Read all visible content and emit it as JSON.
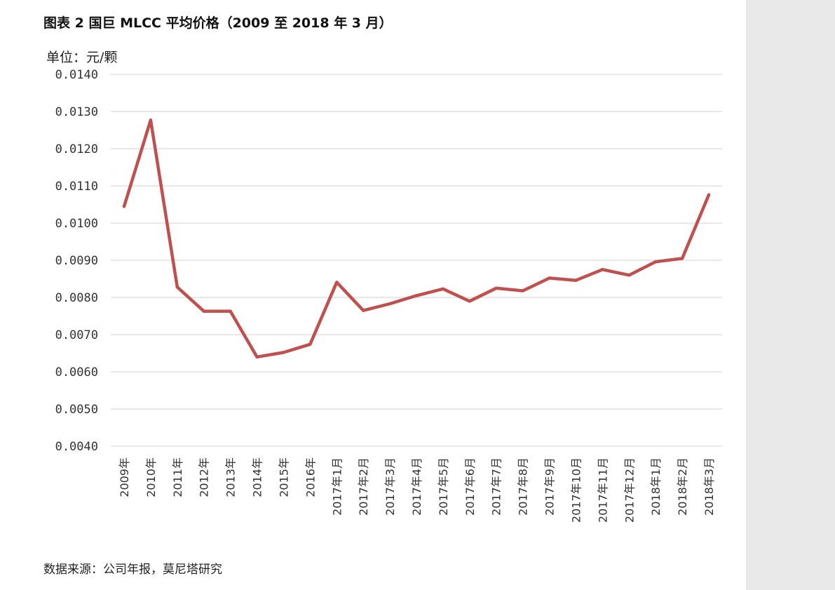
{
  "title": "图表 2 国巨 MLCC 平均价格（2009 至 2018 年 3 月）",
  "unit_label": "单位：元/颗",
  "source_note": "数据来源：公司年报，莫尼塔研究",
  "colors": {
    "line": "#c0504d",
    "grid": "#d9d9d9",
    "panel": "#e9e9e9"
  },
  "chart_data": {
    "type": "line",
    "title": "图表 2 国巨 MLCC 平均价格（2009 至 2018 年 3 月）",
    "xlabel": "",
    "ylabel": "单位：元/颗",
    "ylim": [
      0.004,
      0.014
    ],
    "yticks": [
      "0.0040",
      "0.0050",
      "0.0060",
      "0.0070",
      "0.0080",
      "0.0090",
      "0.0100",
      "0.0110",
      "0.0120",
      "0.0130",
      "0.0140"
    ],
    "grid": true,
    "legend": "none",
    "categories": [
      "2009年",
      "2010年",
      "2011年",
      "2012年",
      "2013年",
      "2014年",
      "2015年",
      "2016年",
      "2017年1月",
      "2017年2月",
      "2017年3月",
      "2017年4月",
      "2017年5月",
      "2017年6月",
      "2017年7月",
      "2017年8月",
      "2017年9月",
      "2017年10月",
      "2017年11月",
      "2017年12月",
      "2018年1月",
      "2018年2月",
      "2018年3月"
    ],
    "series": [
      {
        "values": [
          0.01045,
          0.01277,
          0.00828,
          0.00763,
          0.00763,
          0.0064,
          0.00652,
          0.00674,
          0.00841,
          0.00765,
          0.00783,
          0.00805,
          0.00823,
          0.0079,
          0.00825,
          0.00818,
          0.00852,
          0.00846,
          0.00875,
          0.0086,
          0.00896,
          0.00905,
          0.01076
        ]
      }
    ]
  }
}
